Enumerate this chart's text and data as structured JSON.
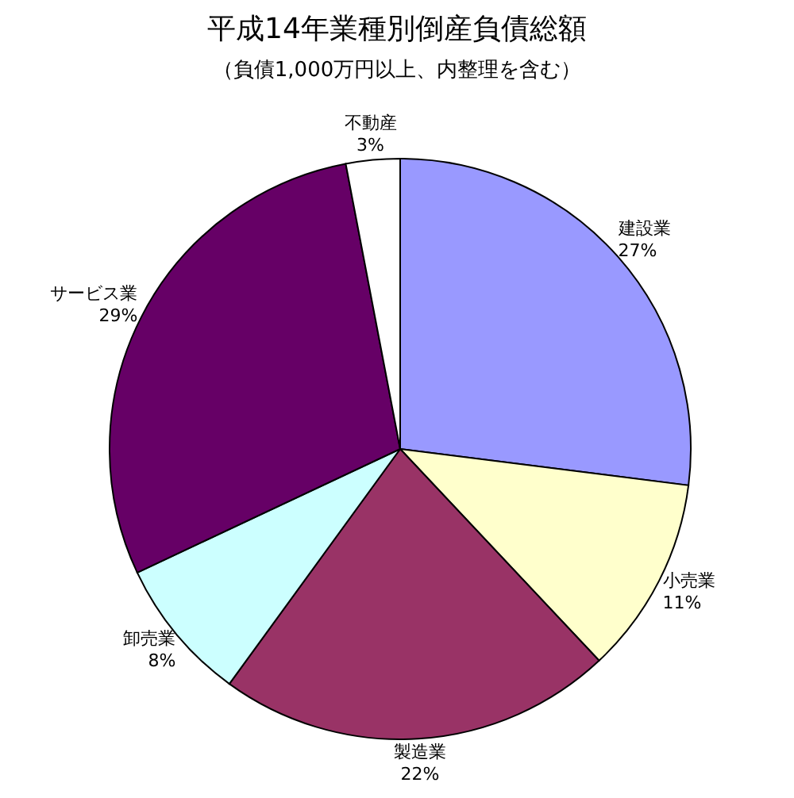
{
  "chart_data": {
    "type": "pie",
    "title": "平成14年業種別倒産負債総額",
    "subtitle": "（負債1,000万円以上、内整理を含む）",
    "categories": [
      "建設業",
      "小売業",
      "製造業",
      "卸売業",
      "サービス業",
      "不動産"
    ],
    "values": [
      27,
      11,
      22,
      8,
      29,
      3
    ],
    "colors": [
      "#9999ff",
      "#ffffcc",
      "#993366",
      "#ccffff",
      "#660066",
      "#ffffff"
    ],
    "value_labels": [
      "27%",
      "11%",
      "22%",
      "8%",
      "29%",
      "3%"
    ],
    "legend": false
  }
}
